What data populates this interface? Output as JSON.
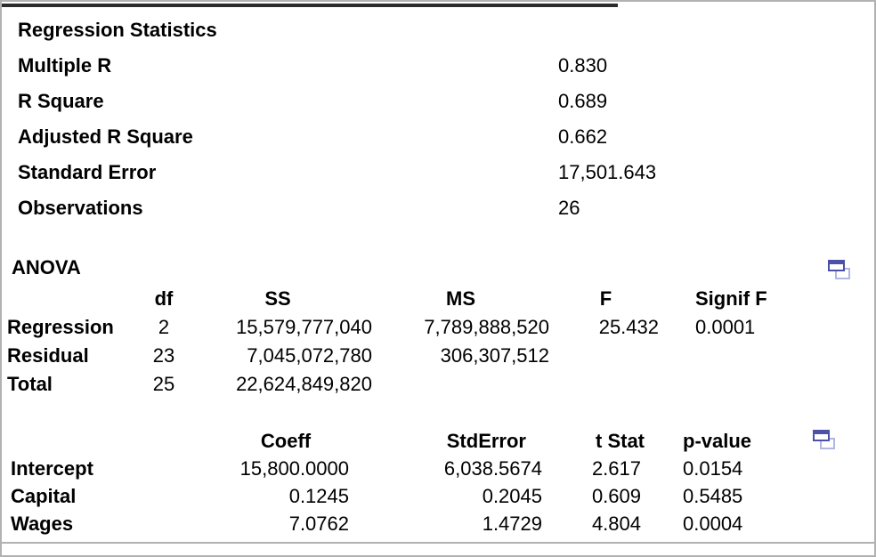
{
  "colors": {
    "text": "#000000",
    "frame_gray": "#b2b2b2",
    "top_rule_dark": "#2b2b2b",
    "icon_front_blue": "#4b51a8",
    "icon_back_periwinkle": "#b0b7e0"
  },
  "icons": {
    "anova_corner": "overlapping-windows",
    "coefficients_corner": "overlapping-windows"
  },
  "regression_statistics": {
    "title": "Regression Statistics",
    "rows": [
      {
        "label": "Multiple R",
        "value": "0.830"
      },
      {
        "label": "R Square",
        "value": "0.689"
      },
      {
        "label": "Adjusted R Square",
        "value": "0.662"
      },
      {
        "label": "Standard Error",
        "value": "17,501.643"
      },
      {
        "label": "Observations",
        "value": "26"
      }
    ]
  },
  "anova": {
    "title": "ANOVA",
    "headers": {
      "df": "df",
      "ss": "SS",
      "ms": "MS",
      "f": "F",
      "signif_f": "Signif F"
    },
    "rows": [
      {
        "label": "Regression",
        "df": "2",
        "ss": "15,579,777,040",
        "ms": "7,789,888,520",
        "f": "25.432",
        "signif_f": "0.0001"
      },
      {
        "label": "Residual",
        "df": "23",
        "ss": "7,045,072,780",
        "ms": "306,307,512",
        "f": "",
        "signif_f": ""
      },
      {
        "label": "Total",
        "df": "25",
        "ss": "22,624,849,820",
        "ms": "",
        "f": "",
        "signif_f": ""
      }
    ]
  },
  "coefficients": {
    "headers": {
      "coeff": "Coeff",
      "std_error": "StdError",
      "t_stat": "t Stat",
      "p_value": "p-value"
    },
    "rows": [
      {
        "label": "Intercept",
        "coeff": "15,800.0000",
        "std_error": "6,038.5674",
        "t_stat": "2.617",
        "p_value": "0.0154"
      },
      {
        "label": "Capital",
        "coeff": "0.1245",
        "std_error": "0.2045",
        "t_stat": "0.609",
        "p_value": "0.5485"
      },
      {
        "label": "Wages",
        "coeff": "7.0762",
        "std_error": "1.4729",
        "t_stat": "4.804",
        "p_value": "0.0004"
      }
    ]
  }
}
